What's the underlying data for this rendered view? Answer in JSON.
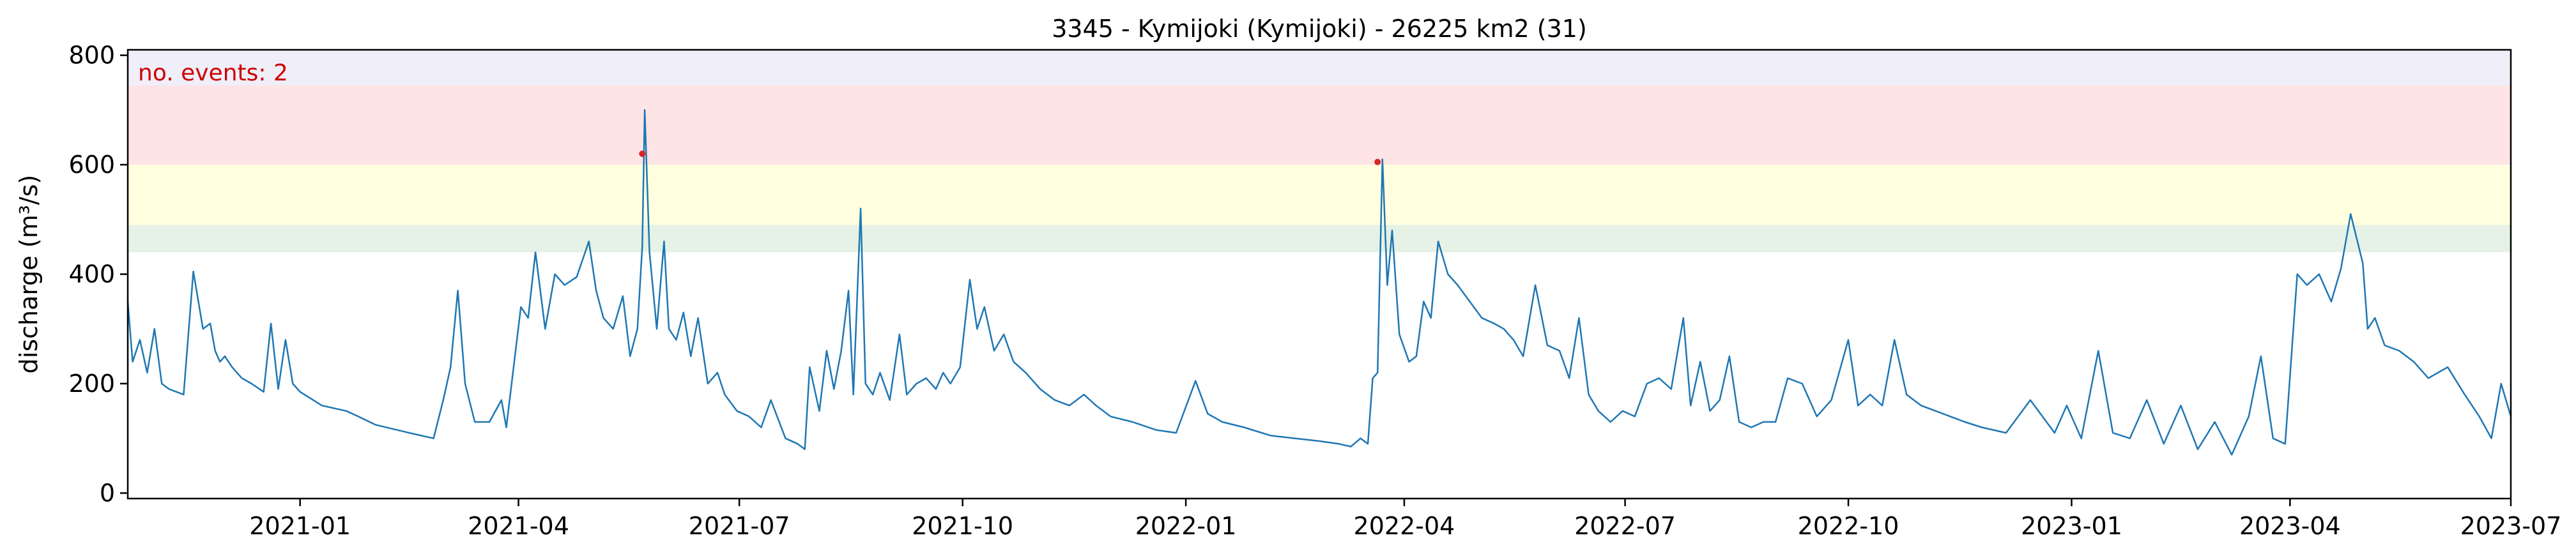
{
  "chart_data": {
    "type": "line",
    "title": "3345 - Kymijoki (Kymijoki) - 26225 km2 (31)",
    "xlabel": "",
    "ylabel": "discharge (m³/s)",
    "xlim": [
      "2020-10-22",
      "2023-07-01"
    ],
    "ylim": [
      -10,
      810
    ],
    "x_tick_labels": [
      "2021-01",
      "2021-04",
      "2021-07",
      "2021-10",
      "2022-01",
      "2022-04",
      "2022-07",
      "2022-10",
      "2023-01",
      "2023-04",
      "2023-07"
    ],
    "x_tick_dates": [
      "2021-01-01",
      "2021-04-01",
      "2021-07-01",
      "2021-10-01",
      "2022-01-01",
      "2022-04-01",
      "2022-07-01",
      "2022-10-01",
      "2023-01-01",
      "2023-04-01",
      "2023-07-01"
    ],
    "y_ticks": [
      0,
      200,
      400,
      600,
      800
    ],
    "grid": false,
    "annotation": {
      "text": "no. events: 2",
      "color": "#cc0000"
    },
    "threshold_bands": [
      {
        "from": 440,
        "to": 490,
        "color": "#e5f2e5"
      },
      {
        "from": 490,
        "to": 600,
        "color": "#ffffe0"
      },
      {
        "from": 600,
        "to": 745,
        "color": "#ffe4e6"
      },
      {
        "from": 745,
        "to": 810,
        "color": "#f0eef8"
      }
    ],
    "series": [
      {
        "color": "#1f77b4",
        "x": [
          "2020-10-22",
          "2020-10-24",
          "2020-10-27",
          "2020-10-30",
          "2020-11-02",
          "2020-11-05",
          "2020-11-08",
          "2020-11-11",
          "2020-11-14",
          "2020-11-18",
          "2020-11-22",
          "2020-11-25",
          "2020-11-27",
          "2020-11-29",
          "2020-12-01",
          "2020-12-04",
          "2020-12-08",
          "2020-12-12",
          "2020-12-17",
          "2020-12-20",
          "2020-12-23",
          "2020-12-26",
          "2020-12-29",
          "2021-01-01",
          "2021-01-10",
          "2021-01-20",
          "2021-01-25",
          "2021-02-01",
          "2021-02-15",
          "2021-02-25",
          "2021-03-01",
          "2021-03-04",
          "2021-03-07",
          "2021-03-10",
          "2021-03-14",
          "2021-03-20",
          "2021-03-25",
          "2021-03-27",
          "2021-04-02",
          "2021-04-05",
          "2021-04-08",
          "2021-04-12",
          "2021-04-16",
          "2021-04-20",
          "2021-04-25",
          "2021-04-30",
          "2021-05-03",
          "2021-05-06",
          "2021-05-10",
          "2021-05-14",
          "2021-05-17",
          "2021-05-20",
          "2021-05-22",
          "2021-05-23",
          "2021-05-25",
          "2021-05-28",
          "2021-05-31",
          "2021-06-02",
          "2021-06-05",
          "2021-06-08",
          "2021-06-11",
          "2021-06-14",
          "2021-06-18",
          "2021-06-22",
          "2021-06-25",
          "2021-06-30",
          "2021-07-05",
          "2021-07-10",
          "2021-07-14",
          "2021-07-20",
          "2021-07-25",
          "2021-07-28",
          "2021-07-30",
          "2021-08-03",
          "2021-08-06",
          "2021-08-09",
          "2021-08-12",
          "2021-08-15",
          "2021-08-17",
          "2021-08-20",
          "2021-08-22",
          "2021-08-25",
          "2021-08-28",
          "2021-09-01",
          "2021-09-05",
          "2021-09-08",
          "2021-09-12",
          "2021-09-16",
          "2021-09-20",
          "2021-09-23",
          "2021-09-26",
          "2021-09-30",
          "2021-10-04",
          "2021-10-07",
          "2021-10-10",
          "2021-10-14",
          "2021-10-18",
          "2021-10-22",
          "2021-10-27",
          "2021-11-02",
          "2021-11-08",
          "2021-11-14",
          "2021-11-20",
          "2021-11-25",
          "2021-12-01",
          "2021-12-10",
          "2021-12-20",
          "2021-12-28",
          "2022-01-05",
          "2022-01-10",
          "2022-01-16",
          "2022-01-25",
          "2022-02-05",
          "2022-02-15",
          "2022-02-25",
          "2022-03-05",
          "2022-03-10",
          "2022-03-14",
          "2022-03-17",
          "2022-03-19",
          "2022-03-21",
          "2022-03-23",
          "2022-03-25",
          "2022-03-27",
          "2022-03-30",
          "2022-04-03",
          "2022-04-06",
          "2022-04-09",
          "2022-04-12",
          "2022-04-15",
          "2022-04-19",
          "2022-04-23",
          "2022-04-28",
          "2022-05-03",
          "2022-05-08",
          "2022-05-12",
          "2022-05-16",
          "2022-05-20",
          "2022-05-25",
          "2022-05-30",
          "2022-06-04",
          "2022-06-08",
          "2022-06-12",
          "2022-06-16",
          "2022-06-20",
          "2022-06-25",
          "2022-06-30",
          "2022-07-05",
          "2022-07-10",
          "2022-07-15",
          "2022-07-20",
          "2022-07-25",
          "2022-07-28",
          "2022-08-01",
          "2022-08-05",
          "2022-08-09",
          "2022-08-13",
          "2022-08-17",
          "2022-08-22",
          "2022-08-27",
          "2022-09-01",
          "2022-09-06",
          "2022-09-12",
          "2022-09-18",
          "2022-09-24",
          "2022-10-01",
          "2022-10-05",
          "2022-10-10",
          "2022-10-15",
          "2022-10-20",
          "2022-10-25",
          "2022-10-31",
          "2022-11-06",
          "2022-11-12",
          "2022-11-18",
          "2022-11-25",
          "2022-12-05",
          "2022-12-15",
          "2022-12-25",
          "2022-12-30",
          "2023-01-05",
          "2023-01-12",
          "2023-01-18",
          "2023-01-25",
          "2023-02-01",
          "2023-02-08",
          "2023-02-15",
          "2023-02-22",
          "2023-03-01",
          "2023-03-08",
          "2023-03-15",
          "2023-03-20",
          "2023-03-25",
          "2023-03-30",
          "2023-04-04",
          "2023-04-08",
          "2023-04-13",
          "2023-04-18",
          "2023-04-22",
          "2023-04-26",
          "2023-05-01",
          "2023-05-03",
          "2023-05-06",
          "2023-05-10",
          "2023-05-16",
          "2023-05-22",
          "2023-05-28",
          "2023-06-05",
          "2023-06-12",
          "2023-06-18",
          "2023-06-23",
          "2023-06-27",
          "2023-07-01"
        ],
        "y": [
          350,
          240,
          280,
          220,
          300,
          200,
          190,
          185,
          180,
          405,
          300,
          310,
          260,
          240,
          250,
          230,
          210,
          200,
          185,
          310,
          190,
          280,
          200,
          185,
          160,
          150,
          140,
          125,
          110,
          100,
          170,
          230,
          370,
          200,
          130,
          130,
          170,
          120,
          340,
          320,
          440,
          300,
          400,
          380,
          395,
          460,
          370,
          320,
          300,
          360,
          250,
          300,
          450,
          700,
          440,
          300,
          460,
          300,
          280,
          330,
          250,
          320,
          200,
          220,
          180,
          150,
          140,
          120,
          170,
          100,
          90,
          80,
          230,
          150,
          260,
          190,
          260,
          370,
          180,
          520,
          200,
          180,
          220,
          170,
          290,
          180,
          200,
          210,
          190,
          220,
          200,
          230,
          390,
          300,
          340,
          260,
          290,
          240,
          220,
          190,
          170,
          160,
          180,
          160,
          140,
          130,
          115,
          110,
          205,
          145,
          130,
          120,
          105,
          100,
          95,
          90,
          85,
          100,
          90,
          210,
          220,
          610,
          380,
          480,
          290,
          240,
          250,
          350,
          320,
          460,
          400,
          380,
          350,
          320,
          310,
          300,
          280,
          250,
          380,
          270,
          260,
          210,
          320,
          180,
          150,
          130,
          150,
          140,
          200,
          210,
          190,
          320,
          160,
          240,
          150,
          170,
          250,
          130,
          120,
          130,
          130,
          210,
          200,
          140,
          170,
          280,
          160,
          180,
          160,
          280,
          180,
          160,
          150,
          140,
          130,
          120,
          110,
          170,
          110,
          160,
          100,
          260,
          110,
          100,
          170,
          90,
          160,
          80,
          130,
          70,
          140,
          250,
          100,
          90,
          400,
          380,
          400,
          350,
          410,
          510,
          420,
          300,
          320,
          270,
          260,
          240,
          210,
          230,
          180,
          140,
          100,
          200,
          140
        ]
      }
    ],
    "events": [
      {
        "x": "2021-05-22",
        "y": 620,
        "color": "#d62728"
      },
      {
        "x": "2022-03-21",
        "y": 605,
        "color": "#d62728"
      }
    ]
  }
}
